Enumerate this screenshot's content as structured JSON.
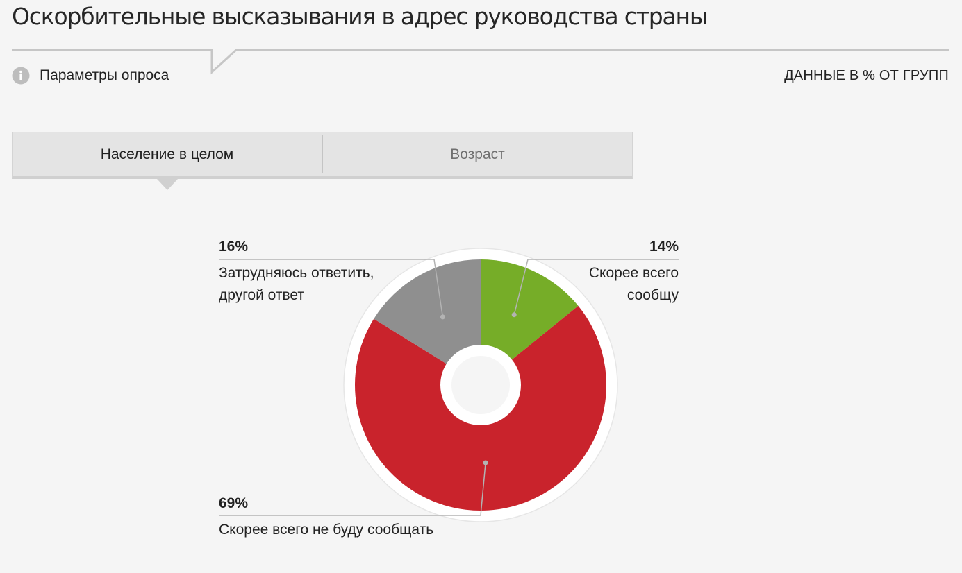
{
  "header": {
    "title": "Оскорбительные высказывания в адрес руководства страны"
  },
  "toolbar": {
    "params_label": "Параметры опроса",
    "params_icon": "info-icon",
    "data_note": "ДАННЫЕ В % ОТ ГРУПП"
  },
  "tabs": [
    {
      "label": "Население в целом",
      "active": true
    },
    {
      "label": "Возраст",
      "active": false
    }
  ],
  "colors": {
    "green": "#76ad28",
    "red": "#c9232c",
    "gray": "#8f8f8f",
    "background": "#f5f5f5"
  },
  "chart_data": {
    "type": "pie",
    "variant": "donut",
    "unit": "%",
    "slices": [
      {
        "label": "Скорее всего сообщу",
        "value": 14,
        "value_label": "14%",
        "color": "#76ad28"
      },
      {
        "label": "Скорее всего не буду сообщать",
        "value": 69,
        "value_label": "69%",
        "color": "#c9232c"
      },
      {
        "label": "Затрудняюсь ответить, другой ответ",
        "value": 16,
        "value_label": "16%",
        "color": "#8f8f8f"
      }
    ],
    "label_lines": [
      [
        "Скорее всего",
        "сообщу"
      ],
      [
        "Скорее всего не буду сообщать"
      ],
      [
        "Затрудняюсь ответить,",
        "другой ответ"
      ]
    ]
  }
}
